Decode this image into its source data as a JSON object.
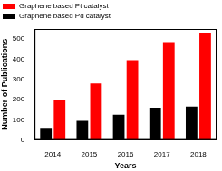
{
  "chart_data": {
    "type": "bar",
    "x_label": "Years",
    "y_label": "Number of Publications",
    "categories": [
      "2014",
      "2015",
      "2016",
      "2017",
      "2018"
    ],
    "series": [
      {
        "name": "Graphene based Pt catalyst",
        "color": "#ff0000",
        "values": [
          200,
          280,
          395,
          485,
          530
        ]
      },
      {
        "name": "Graphene based Pd catalyst",
        "color": "#000000",
        "values": [
          55,
          95,
          125,
          160,
          165
        ]
      }
    ],
    "ylim": [
      0,
      550
    ],
    "yticks": [
      0,
      100,
      200,
      300,
      400,
      500
    ],
    "grid": false,
    "legend": "upper left"
  }
}
